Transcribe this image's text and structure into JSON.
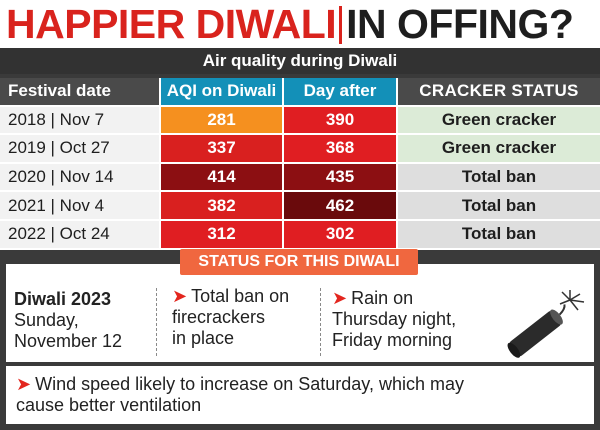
{
  "headline": {
    "part1": "HAPPIER DIWALI",
    "part2": "IN OFFING?"
  },
  "subhead": "Air quality during Diwali",
  "table": {
    "headers": [
      "Festival date",
      "AQI on Diwali",
      "Day after",
      "CRACKER STATUS"
    ],
    "rows": [
      {
        "date": "2018 | Nov 7",
        "aqi": "281",
        "after": "390",
        "status": "Green cracker",
        "aqi_color": "#f5901f",
        "after_color": "#e01e22",
        "status_color": "#dcebd7"
      },
      {
        "date": "2019 | Oct 27",
        "aqi": "337",
        "after": "368",
        "status": "Green cracker",
        "aqi_color": "#d9201f",
        "after_color": "#e01e22",
        "status_color": "#dcebd7"
      },
      {
        "date": "2020 | Nov 14",
        "aqi": "414",
        "after": "435",
        "status": "Total ban",
        "aqi_color": "#8c0f12",
        "after_color": "#8c0f12",
        "status_color": "#dedede"
      },
      {
        "date": "2021 | Nov 4",
        "aqi": "382",
        "after": "462",
        "status": "Total ban",
        "aqi_color": "#d9201f",
        "after_color": "#6a0a0c",
        "status_color": "#dedede"
      },
      {
        "date": "2022 | Oct 24",
        "aqi": "312",
        "after": "302",
        "status": "Total ban",
        "aqi_color": "#e01e22",
        "after_color": "#e01e22",
        "status_color": "#dedede"
      }
    ]
  },
  "status_bar": "STATUS FOR THIS DIWALI",
  "info": {
    "title": "Diwali 2023",
    "date_line1": "Sunday,",
    "date_line2": "November 12",
    "ban_line1": "Total ban on",
    "ban_line2": "firecrackers",
    "ban_line3": "in place",
    "rain_line1": "Rain on",
    "rain_line2": "Thursday night,",
    "rain_line3": "Friday morning"
  },
  "wind": {
    "line1": "Wind speed likely to increase on Saturday, which may",
    "line2": "cause better ventilation"
  },
  "icons": {
    "arrow": "➤",
    "firecracker": "firecracker-icon"
  }
}
